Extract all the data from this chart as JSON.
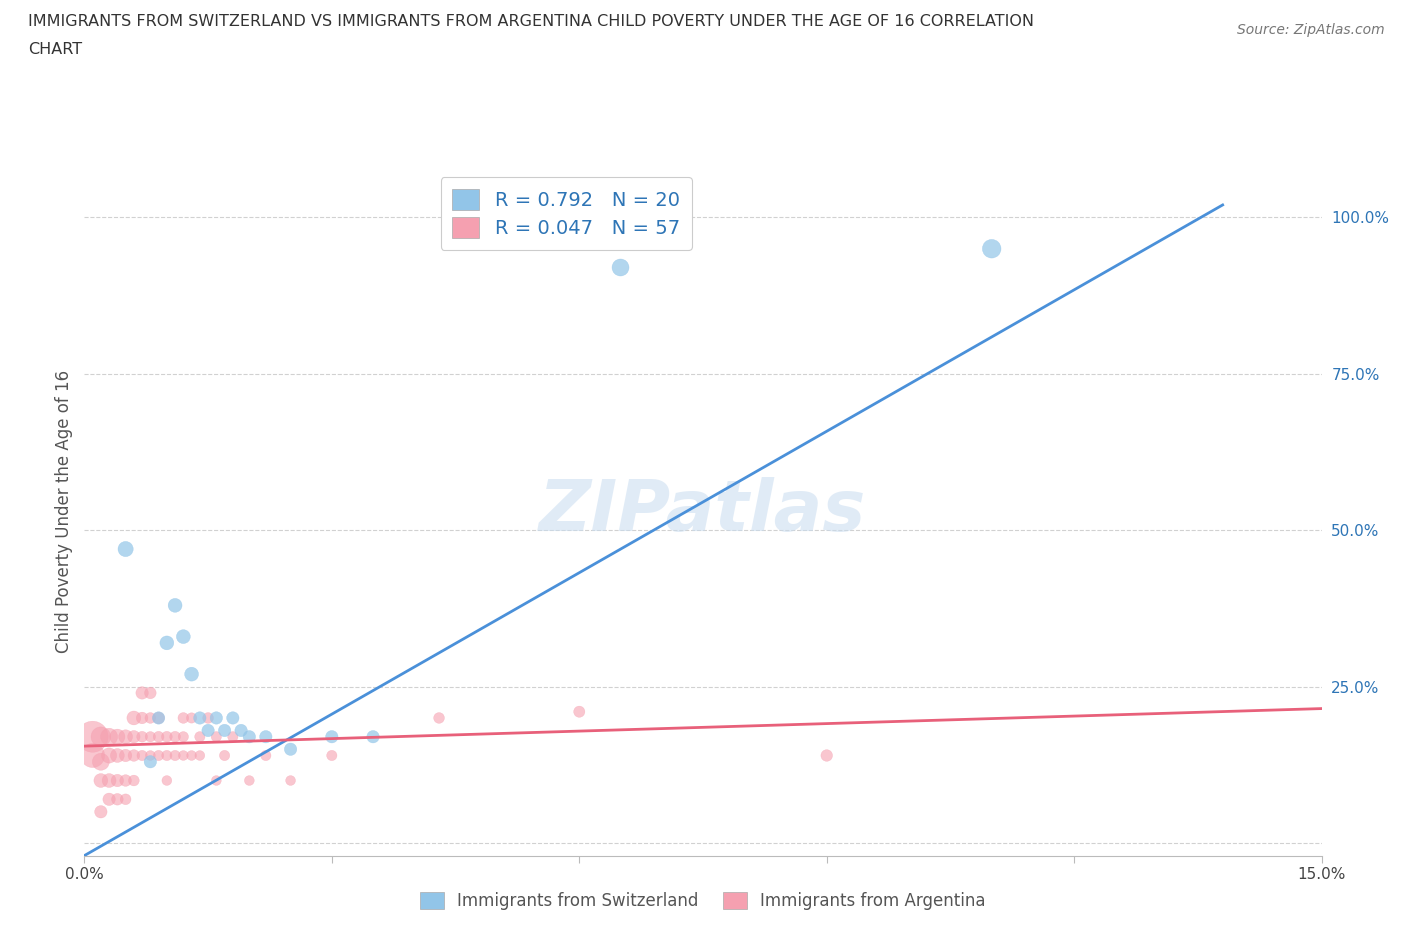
{
  "title_line1": "IMMIGRANTS FROM SWITZERLAND VS IMMIGRANTS FROM ARGENTINA CHILD POVERTY UNDER THE AGE OF 16 CORRELATION",
  "title_line2": "CHART",
  "source": "Source: ZipAtlas.com",
  "xlabel_label": "Immigrants from Switzerland",
  "ylabel_label": "Child Poverty Under the Age of 16",
  "xlabel_label2": "Immigrants from Argentina",
  "xlim": [
    0.0,
    0.15
  ],
  "ylim": [
    -0.02,
    1.08
  ],
  "xticks": [
    0.0,
    0.03,
    0.06,
    0.09,
    0.12,
    0.15
  ],
  "xticklabels": [
    "0.0%",
    "",
    "",
    "",
    "",
    "15.0%"
  ],
  "ytick_positions": [
    0.0,
    0.25,
    0.5,
    0.75,
    1.0
  ],
  "yticklabels": [
    "",
    "25.0%",
    "50.0%",
    "75.0%",
    "100.0%"
  ],
  "swiss_R": 0.792,
  "swiss_N": 20,
  "arg_R": 0.047,
  "arg_N": 57,
  "swiss_color": "#92C5E8",
  "arg_color": "#F5A0B0",
  "swiss_line_color": "#4A90D9",
  "arg_line_color": "#E8607A",
  "legend_R_color": "#2E75B6",
  "watermark": "ZIPatlas",
  "swiss_line_x0": 0.0,
  "swiss_line_y0": -0.02,
  "swiss_line_x1": 0.138,
  "swiss_line_y1": 1.02,
  "arg_line_x0": 0.0,
  "arg_line_y0": 0.155,
  "arg_line_x1": 0.15,
  "arg_line_y1": 0.215,
  "swiss_scatter": [
    [
      0.005,
      0.47
    ],
    [
      0.008,
      0.13
    ],
    [
      0.009,
      0.2
    ],
    [
      0.01,
      0.32
    ],
    [
      0.011,
      0.38
    ],
    [
      0.012,
      0.33
    ],
    [
      0.013,
      0.27
    ],
    [
      0.014,
      0.2
    ],
    [
      0.015,
      0.18
    ],
    [
      0.016,
      0.2
    ],
    [
      0.017,
      0.18
    ],
    [
      0.018,
      0.2
    ],
    [
      0.019,
      0.18
    ],
    [
      0.02,
      0.17
    ],
    [
      0.022,
      0.17
    ],
    [
      0.025,
      0.15
    ],
    [
      0.03,
      0.17
    ],
    [
      0.035,
      0.17
    ],
    [
      0.065,
      0.92
    ],
    [
      0.11,
      0.95
    ]
  ],
  "arg_scatter": [
    [
      0.001,
      0.17
    ],
    [
      0.001,
      0.14
    ],
    [
      0.002,
      0.17
    ],
    [
      0.002,
      0.13
    ],
    [
      0.002,
      0.1
    ],
    [
      0.002,
      0.05
    ],
    [
      0.003,
      0.17
    ],
    [
      0.003,
      0.14
    ],
    [
      0.003,
      0.1
    ],
    [
      0.003,
      0.07
    ],
    [
      0.004,
      0.17
    ],
    [
      0.004,
      0.14
    ],
    [
      0.004,
      0.1
    ],
    [
      0.004,
      0.07
    ],
    [
      0.005,
      0.17
    ],
    [
      0.005,
      0.14
    ],
    [
      0.005,
      0.1
    ],
    [
      0.005,
      0.07
    ],
    [
      0.006,
      0.2
    ],
    [
      0.006,
      0.17
    ],
    [
      0.006,
      0.14
    ],
    [
      0.006,
      0.1
    ],
    [
      0.007,
      0.24
    ],
    [
      0.007,
      0.2
    ],
    [
      0.007,
      0.17
    ],
    [
      0.007,
      0.14
    ],
    [
      0.008,
      0.24
    ],
    [
      0.008,
      0.2
    ],
    [
      0.008,
      0.17
    ],
    [
      0.008,
      0.14
    ],
    [
      0.009,
      0.2
    ],
    [
      0.009,
      0.17
    ],
    [
      0.009,
      0.14
    ],
    [
      0.01,
      0.17
    ],
    [
      0.01,
      0.14
    ],
    [
      0.01,
      0.1
    ],
    [
      0.011,
      0.17
    ],
    [
      0.011,
      0.14
    ],
    [
      0.012,
      0.2
    ],
    [
      0.012,
      0.17
    ],
    [
      0.012,
      0.14
    ],
    [
      0.013,
      0.2
    ],
    [
      0.013,
      0.14
    ],
    [
      0.014,
      0.17
    ],
    [
      0.014,
      0.14
    ],
    [
      0.015,
      0.2
    ],
    [
      0.016,
      0.17
    ],
    [
      0.016,
      0.1
    ],
    [
      0.017,
      0.14
    ],
    [
      0.018,
      0.17
    ],
    [
      0.02,
      0.1
    ],
    [
      0.022,
      0.14
    ],
    [
      0.025,
      0.1
    ],
    [
      0.03,
      0.14
    ],
    [
      0.043,
      0.2
    ],
    [
      0.06,
      0.21
    ],
    [
      0.09,
      0.14
    ]
  ],
  "swiss_sizes": [
    120,
    80,
    80,
    100,
    100,
    100,
    100,
    80,
    80,
    80,
    80,
    80,
    80,
    80,
    80,
    80,
    80,
    80,
    150,
    180
  ],
  "arg_sizes": [
    500,
    300,
    200,
    150,
    100,
    80,
    150,
    120,
    100,
    80,
    120,
    100,
    80,
    70,
    100,
    80,
    70,
    60,
    100,
    80,
    70,
    60,
    80,
    70,
    60,
    55,
    70,
    60,
    55,
    50,
    70,
    60,
    55,
    60,
    55,
    50,
    60,
    55,
    60,
    55,
    50,
    55,
    50,
    55,
    50,
    60,
    55,
    50,
    55,
    55,
    50,
    55,
    50,
    55,
    60,
    65,
    70
  ]
}
